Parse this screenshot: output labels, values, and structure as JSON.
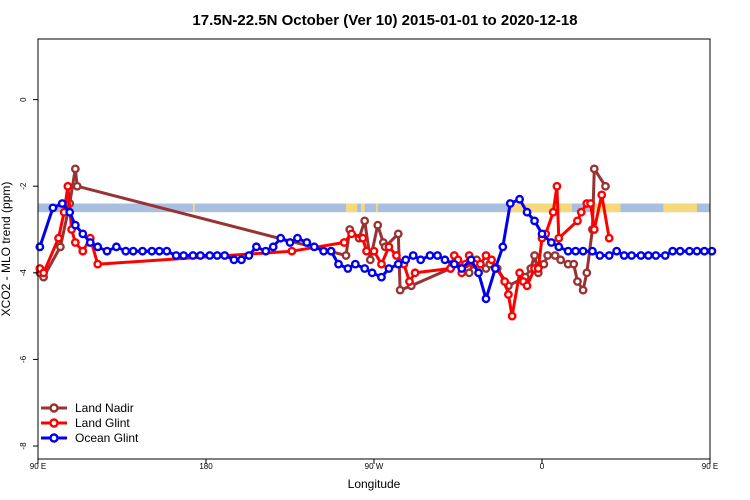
{
  "chart_data": {
    "type": "line",
    "title": "17.5N-22.5N October (Ver 10)   2015-01-01 to 2020-12-18",
    "xlabel": "Longitude",
    "ylabel": "XCO2 - MLO trend (ppm)",
    "xlim": [
      90,
      450
    ],
    "ylim": [
      -8.3,
      1.4
    ],
    "x_ticks": [
      {
        "value": 90,
        "label": "90 E"
      },
      {
        "value": 180,
        "label": "180"
      },
      {
        "value": 270,
        "label": "90 W"
      },
      {
        "value": 360,
        "label": "0"
      },
      {
        "value": 450,
        "label": "90 E"
      },
      {
        "value": 540,
        "label": "180"
      }
    ],
    "y_ticks": [
      {
        "value": 0,
        "label": "0"
      },
      {
        "value": -2,
        "label": "-2"
      },
      {
        "value": -4,
        "label": "-4"
      },
      {
        "value": -6,
        "label": "-6"
      },
      {
        "value": -8,
        "label": "-8"
      }
    ],
    "x_domain": [
      90,
      540
    ],
    "legend_position": "bottom-left",
    "land_band": {
      "y_range": [
        -2.6,
        -2.4
      ],
      "ocean_color": "#a8bfe0",
      "land_color": "#f6d97a",
      "land_segments": [
        [
          173,
          174
        ],
        [
          255,
          261
        ],
        [
          263,
          265
        ],
        [
          271,
          272
        ],
        [
          343,
          376
        ],
        [
          387,
          402
        ],
        [
          425,
          443
        ]
      ]
    },
    "series": [
      {
        "name": "Land Nadir",
        "color": "#993333",
        "x": [
          91,
          93,
          102,
          107,
          110,
          111,
          255,
          257,
          262,
          265,
          268,
          272,
          275,
          276,
          283,
          284,
          290,
          311,
          312,
          321,
          323,
          325,
          330,
          332,
          336,
          342,
          351,
          354,
          356,
          358,
          361,
          363,
          367,
          370,
          374,
          377,
          379,
          382,
          384,
          387,
          388,
          394
        ],
        "values": [
          -4.0,
          -4.1,
          -3.4,
          -2.4,
          -1.6,
          -2.0,
          -3.6,
          -3.0,
          -3.2,
          -2.8,
          -3.7,
          -2.9,
          -3.3,
          -3.4,
          -3.1,
          -4.4,
          -4.3,
          -3.9,
          -3.8,
          -4.0,
          -3.8,
          -3.7,
          -3.9,
          -3.8,
          -3.9,
          -4.3,
          -4.1,
          -3.9,
          -3.6,
          -4.0,
          -3.8,
          -3.6,
          -3.6,
          -3.7,
          -3.8,
          -3.8,
          -4.2,
          -4.4,
          -4.0,
          -3.0,
          -1.6,
          -2.0
        ]
      },
      {
        "name": "Land Glint",
        "color": "#ff0000",
        "x": [
          91,
          93,
          101,
          104,
          106,
          108,
          110,
          114,
          118,
          122,
          226,
          254,
          258,
          264,
          266,
          270,
          274,
          278,
          282,
          286,
          289,
          292,
          311,
          313,
          315,
          317,
          319,
          321,
          324,
          327,
          330,
          333,
          340,
          342,
          344,
          348,
          350,
          352,
          356,
          358,
          360,
          362,
          366,
          368,
          369,
          379,
          381,
          384,
          386,
          388,
          392,
          396
        ],
        "values": [
          -3.9,
          -4.0,
          -3.2,
          -2.6,
          -2.0,
          -3.0,
          -3.3,
          -3.5,
          -3.2,
          -3.8,
          -3.5,
          -3.3,
          -3.1,
          -3.2,
          -3.5,
          -3.5,
          -3.8,
          -3.4,
          -3.6,
          -3.8,
          -4.2,
          -4.0,
          -3.9,
          -3.6,
          -3.7,
          -4.0,
          -3.8,
          -3.6,
          -3.8,
          -3.8,
          -3.6,
          -3.7,
          -4.2,
          -4.5,
          -5.0,
          -4.0,
          -4.2,
          -4.3,
          -3.9,
          -3.9,
          -3.2,
          -3.1,
          -2.6,
          -2.0,
          -3.2,
          -2.8,
          -2.6,
          -2.4,
          -2.4,
          -3.0,
          -2.2,
          -3.2
        ]
      },
      {
        "name": "Ocean Glint",
        "color": "#0000ee",
        "x": [
          91,
          98,
          103,
          107,
          110,
          114,
          118,
          122,
          127,
          132,
          137,
          141,
          146,
          151,
          155,
          159,
          164,
          168,
          173,
          177,
          182,
          186,
          190,
          195,
          199,
          203,
          207,
          212,
          216,
          220,
          225,
          229,
          234,
          238,
          243,
          247,
          251,
          256,
          260,
          265,
          269,
          274,
          278,
          283,
          287,
          291,
          295,
          300,
          304,
          308,
          313,
          317,
          322,
          326,
          330,
          335,
          339,
          343,
          348,
          352,
          356,
          360,
          365,
          369,
          374,
          378,
          382,
          387,
          391,
          396,
          400,
          404,
          408,
          413,
          417,
          421,
          426,
          430,
          434,
          439,
          443,
          447,
          451
        ],
        "values": [
          -3.4,
          -2.5,
          -2.4,
          -2.6,
          -2.9,
          -3.1,
          -3.3,
          -3.4,
          -3.5,
          -3.4,
          -3.5,
          -3.5,
          -3.5,
          -3.5,
          -3.5,
          -3.5,
          -3.6,
          -3.6,
          -3.6,
          -3.6,
          -3.6,
          -3.6,
          -3.6,
          -3.7,
          -3.7,
          -3.6,
          -3.4,
          -3.5,
          -3.4,
          -3.2,
          -3.3,
          -3.2,
          -3.3,
          -3.4,
          -3.5,
          -3.5,
          -3.8,
          -3.9,
          -3.8,
          -3.9,
          -4.0,
          -4.1,
          -3.9,
          -3.8,
          -3.7,
          -3.6,
          -3.7,
          -3.6,
          -3.6,
          -3.7,
          -3.8,
          -3.9,
          -3.7,
          -4.0,
          -4.6,
          -3.9,
          -3.4,
          -2.4,
          -2.3,
          -2.6,
          -2.8,
          -3.1,
          -3.3,
          -3.4,
          -3.5,
          -3.5,
          -3.5,
          -3.5,
          -3.6,
          -3.6,
          -3.5,
          -3.6,
          -3.6,
          -3.6,
          -3.6,
          -3.6,
          -3.6,
          -3.5,
          -3.5,
          -3.5,
          -3.5,
          -3.5,
          -3.5
        ]
      }
    ]
  }
}
